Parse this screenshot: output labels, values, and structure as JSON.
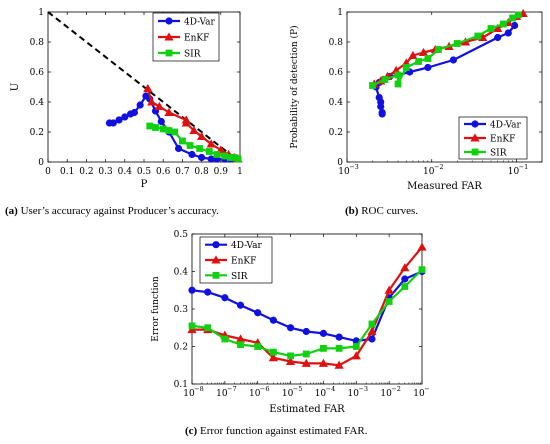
{
  "colors": {
    "4D-Var": "#1010e0",
    "EnKF": "#e01010",
    "SIR": "#10d010",
    "diag": "#000000"
  },
  "captions": {
    "a_tag": "(a)",
    "a_text": "User’s accuracy against Producer’s accuracy.",
    "b_tag": "(b)",
    "b_text": "ROC curves.",
    "c_tag": "(c)",
    "c_text": "Error function against estimated FAR."
  },
  "chart_data": [
    {
      "id": "a",
      "type": "line",
      "xlabel": "P",
      "ylabel": "U",
      "xlim": [
        0,
        1
      ],
      "ylim": [
        0,
        1
      ],
      "xticks": [
        0,
        0.1,
        0.2,
        0.3,
        0.4,
        0.5,
        0.6,
        0.7,
        0.8,
        0.9,
        1
      ],
      "yticks": [
        0,
        0.2,
        0.4,
        0.6,
        0.8,
        1
      ],
      "tick_labels_x": [
        "0",
        "0.1",
        "0.2",
        "0.3",
        "0.4",
        "0.5",
        "0.6",
        "0.7",
        "0.8",
        "0.9",
        "1"
      ],
      "tick_labels_y": [
        "0",
        "0.2",
        "0.4",
        "0.6",
        "0.8",
        "1"
      ],
      "legend_position": "top-right",
      "diagonal": {
        "x": [
          0,
          1
        ],
        "y": [
          1,
          0
        ],
        "style": "dashed"
      },
      "series": [
        {
          "name": "4D-Var",
          "marker": "circle",
          "x": [
            0.32,
            0.34,
            0.37,
            0.4,
            0.43,
            0.45,
            0.48,
            0.51,
            0.53,
            0.56,
            0.59,
            0.63,
            0.68,
            0.75,
            0.8,
            0.85,
            0.88,
            0.92,
            0.95,
            0.98
          ],
          "y": [
            0.26,
            0.26,
            0.28,
            0.3,
            0.32,
            0.33,
            0.38,
            0.44,
            0.42,
            0.34,
            0.27,
            0.2,
            0.09,
            0.05,
            0.03,
            0.02,
            0.02,
            0.02,
            0.02,
            0.02
          ]
        },
        {
          "name": "EnKF",
          "marker": "triangle",
          "x": [
            0.52,
            0.54,
            0.58,
            0.63,
            0.72,
            0.72,
            0.76,
            0.8,
            0.85,
            0.9,
            0.94,
            0.97,
            0.99
          ],
          "y": [
            0.49,
            0.4,
            0.37,
            0.33,
            0.28,
            0.26,
            0.21,
            0.17,
            0.12,
            0.08,
            0.05,
            0.03,
            0.02
          ]
        },
        {
          "name": "SIR",
          "marker": "square",
          "x": [
            0.53,
            0.56,
            0.6,
            0.63,
            0.66,
            0.7,
            0.74,
            0.79,
            0.84,
            0.88,
            0.92,
            0.95,
            0.97,
            0.99
          ],
          "y": [
            0.24,
            0.23,
            0.22,
            0.21,
            0.2,
            0.14,
            0.11,
            0.09,
            0.07,
            0.05,
            0.04,
            0.03,
            0.03,
            0.02
          ]
        }
      ]
    },
    {
      "id": "b",
      "type": "line",
      "xlabel": "Measured FAR",
      "ylabel": "Probability of detection (P)",
      "xscale": "log",
      "xlim": [
        0.001,
        0.2
      ],
      "ylim": [
        0,
        1
      ],
      "xticks": [
        0.001,
        0.01,
        0.1
      ],
      "yticks": [
        0,
        0.2,
        0.4,
        0.6,
        0.8,
        1
      ],
      "tick_labels_x": [
        "10",
        "10",
        "10"
      ],
      "tick_exponents_x": [
        "−3",
        "−2",
        "−1"
      ],
      "tick_labels_y": [
        "0",
        "0.2",
        "0.4",
        "0.6",
        "0.8",
        "1"
      ],
      "legend_position": "bottom-right",
      "series": [
        {
          "name": "4D-Var",
          "marker": "circle",
          "x": [
            0.0026,
            0.0026,
            0.0025,
            0.0025,
            0.0024,
            0.0022,
            0.0024,
            0.0027,
            0.0032,
            0.004,
            0.0055,
            0.009,
            0.018,
            0.06,
            0.08,
            0.095
          ],
          "y": [
            0.32,
            0.33,
            0.37,
            0.4,
            0.43,
            0.5,
            0.53,
            0.55,
            0.57,
            0.58,
            0.6,
            0.63,
            0.68,
            0.83,
            0.86,
            0.91
          ]
        },
        {
          "name": "EnKF",
          "marker": "triangle",
          "x": [
            0.0021,
            0.0025,
            0.003,
            0.0038,
            0.005,
            0.006,
            0.008,
            0.011,
            0.016,
            0.025,
            0.04,
            0.06,
            0.08,
            0.1,
            0.12
          ],
          "y": [
            0.52,
            0.54,
            0.57,
            0.61,
            0.66,
            0.71,
            0.73,
            0.75,
            0.77,
            0.8,
            0.83,
            0.89,
            0.93,
            0.97,
            0.99
          ]
        },
        {
          "name": "SIR",
          "marker": "square",
          "x": [
            0.002,
            0.0028,
            0.004,
            0.004,
            0.005,
            0.007,
            0.009,
            0.012,
            0.02,
            0.035,
            0.05,
            0.07,
            0.09,
            0.105
          ],
          "y": [
            0.51,
            0.55,
            0.58,
            0.52,
            0.63,
            0.67,
            0.69,
            0.75,
            0.79,
            0.84,
            0.89,
            0.92,
            0.96,
            0.98
          ]
        }
      ]
    },
    {
      "id": "c",
      "type": "line",
      "xlabel": "Estimated FAR",
      "ylabel": "Error function",
      "xscale": "log",
      "xlim": [
        1e-08,
        0.1
      ],
      "ylim": [
        0.1,
        0.5
      ],
      "xticks": [
        1e-08,
        1e-07,
        1e-06,
        1e-05,
        0.0001,
        0.001,
        0.01,
        0.1
      ],
      "yticks": [
        0.1,
        0.2,
        0.3,
        0.4,
        0.5
      ],
      "tick_labels_x": [
        "10",
        "10",
        "10",
        "10",
        "10",
        "10",
        "10",
        "10"
      ],
      "tick_exponents_x": [
        "−8",
        "−7",
        "−6",
        "−5",
        "−4",
        "−3",
        "−2",
        "−1"
      ],
      "tick_labels_y": [
        "0.1",
        "0.2",
        "0.3",
        "0.4",
        "0.5"
      ],
      "legend_position": "top-left",
      "series": [
        {
          "name": "4D-Var",
          "marker": "circle",
          "x": [
            1e-08,
            3e-08,
            1e-07,
            3e-07,
            1e-06,
            3e-06,
            1e-05,
            3e-05,
            0.0001,
            0.0003,
            0.001,
            0.003,
            0.01,
            0.03,
            0.1
          ],
          "y": [
            0.35,
            0.345,
            0.33,
            0.31,
            0.29,
            0.27,
            0.25,
            0.24,
            0.235,
            0.225,
            0.215,
            0.22,
            0.33,
            0.38,
            0.4
          ]
        },
        {
          "name": "EnKF",
          "marker": "triangle",
          "x": [
            1e-08,
            3e-08,
            1e-07,
            3e-07,
            1e-06,
            3e-06,
            1e-05,
            3e-05,
            0.0001,
            0.0003,
            0.001,
            0.003,
            0.01,
            0.03,
            0.1
          ],
          "y": [
            0.245,
            0.245,
            0.23,
            0.22,
            0.21,
            0.17,
            0.16,
            0.155,
            0.155,
            0.15,
            0.175,
            0.24,
            0.35,
            0.41,
            0.465
          ]
        },
        {
          "name": "SIR",
          "marker": "square",
          "x": [
            1e-08,
            3e-08,
            1e-07,
            3e-07,
            1e-06,
            3e-06,
            1e-05,
            3e-05,
            0.0001,
            0.0003,
            0.001,
            0.003,
            0.01,
            0.03,
            0.1
          ],
          "y": [
            0.255,
            0.25,
            0.22,
            0.205,
            0.2,
            0.185,
            0.175,
            0.18,
            0.195,
            0.195,
            0.2,
            0.26,
            0.32,
            0.36,
            0.405
          ]
        }
      ]
    }
  ]
}
